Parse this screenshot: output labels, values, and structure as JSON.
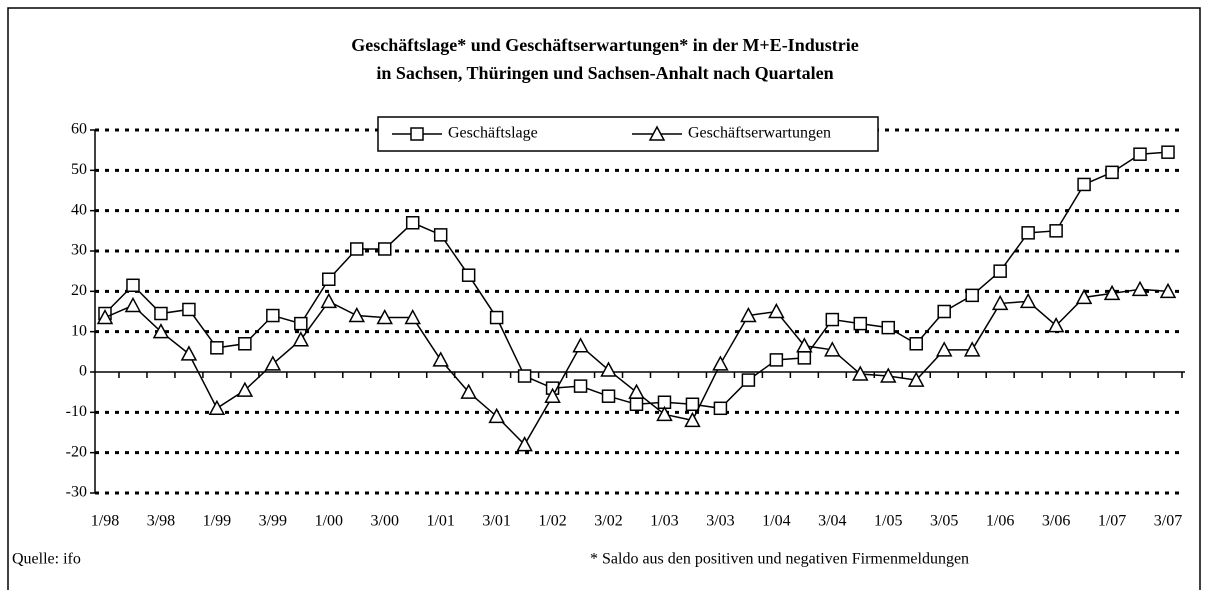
{
  "chart_data": {
    "type": "line",
    "title": [
      "Geschäftslage* und Geschäftserwartungen* in der M+E-Industrie",
      "in Sachsen, Thüringen und Sachsen-Anhalt nach Quartalen"
    ],
    "categories": [
      "1/98",
      null,
      "3/98",
      null,
      "1/99",
      null,
      "3/99",
      null,
      "1/00",
      null,
      "3/00",
      null,
      "1/01",
      null,
      "3/01",
      null,
      "1/02",
      null,
      "3/02",
      null,
      "1/03",
      null,
      "3/03",
      null,
      "1/04",
      null,
      "3/04",
      null,
      "1/05",
      null,
      "3/05",
      null,
      "1/06",
      null,
      "3/06",
      null,
      "1/07",
      null,
      "3/07"
    ],
    "series": [
      {
        "name": "Geschäftslage",
        "color": "#000000",
        "marker": "square",
        "values": [
          14.5,
          21.5,
          14.5,
          15.5,
          6,
          7,
          14,
          12,
          23,
          30.5,
          30.5,
          37,
          34,
          24,
          13.5,
          -1,
          -4,
          -3.5,
          -6,
          -8,
          -7.5,
          -8,
          -9,
          -2,
          3,
          3.5,
          13,
          12,
          11,
          7,
          15,
          19,
          25,
          34.5,
          35,
          46.5,
          49.5,
          54,
          54.5
        ]
      },
      {
        "name": "Geschäftserwartungen",
        "color": "#000000",
        "marker": "triangle",
        "values": [
          13.5,
          16.5,
          10,
          4.5,
          -9,
          -4.5,
          2,
          8,
          17.5,
          14,
          13.5,
          13.5,
          3,
          -5,
          -11,
          -18,
          -6,
          6.5,
          0.5,
          -5,
          -10.5,
          -12,
          2,
          14,
          15,
          6.5,
          5.5,
          -0.5,
          -1,
          -2,
          5.5,
          5.5,
          17,
          17.5,
          11.5,
          18.5,
          19.5,
          20.5,
          20
        ]
      }
    ],
    "ylim": [
      -30,
      60
    ],
    "yticks": [
      -30,
      -20,
      -10,
      0,
      10,
      20,
      30,
      40,
      50,
      60
    ],
    "grid": true,
    "legend": "top",
    "source": "Quelle: ifo",
    "note": "* Saldo aus den positiven und negativen Firmenmeldungen"
  }
}
